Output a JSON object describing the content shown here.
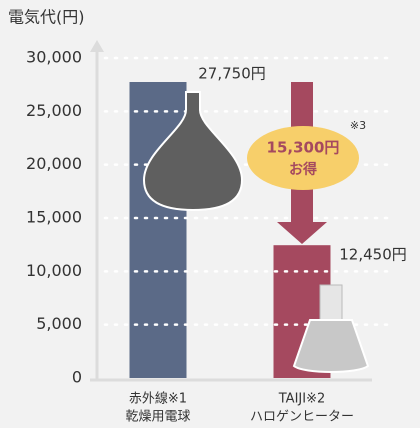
{
  "chart_data": {
    "type": "bar",
    "y_label": "電気代(円)",
    "categories": [
      [
        "赤外線※1",
        "乾燥用電球"
      ],
      [
        "TAIJI※2",
        "ハロゲンヒーター"
      ]
    ],
    "values": [
      27750,
      12450
    ],
    "value_labels": [
      "27,750円",
      "12,450円"
    ],
    "colors": [
      "#5b6a87",
      "#a5495f"
    ],
    "ylim": [
      0,
      30000
    ],
    "yticks": [
      0,
      {
        "value": 5000,
        "label": "5,000"
      },
      {
        "value": 10000,
        "label": "10,000"
      },
      {
        "value": 15000,
        "label": "15,000"
      },
      {
        "value": 20000,
        "label": "20,000"
      },
      {
        "value": 25000,
        "label": "25,000"
      },
      {
        "value": 30000,
        "label": "30,000"
      }
    ],
    "grid": true,
    "annotation": {
      "amount": "15,300円",
      "text": "お得",
      "note": "※3"
    }
  }
}
